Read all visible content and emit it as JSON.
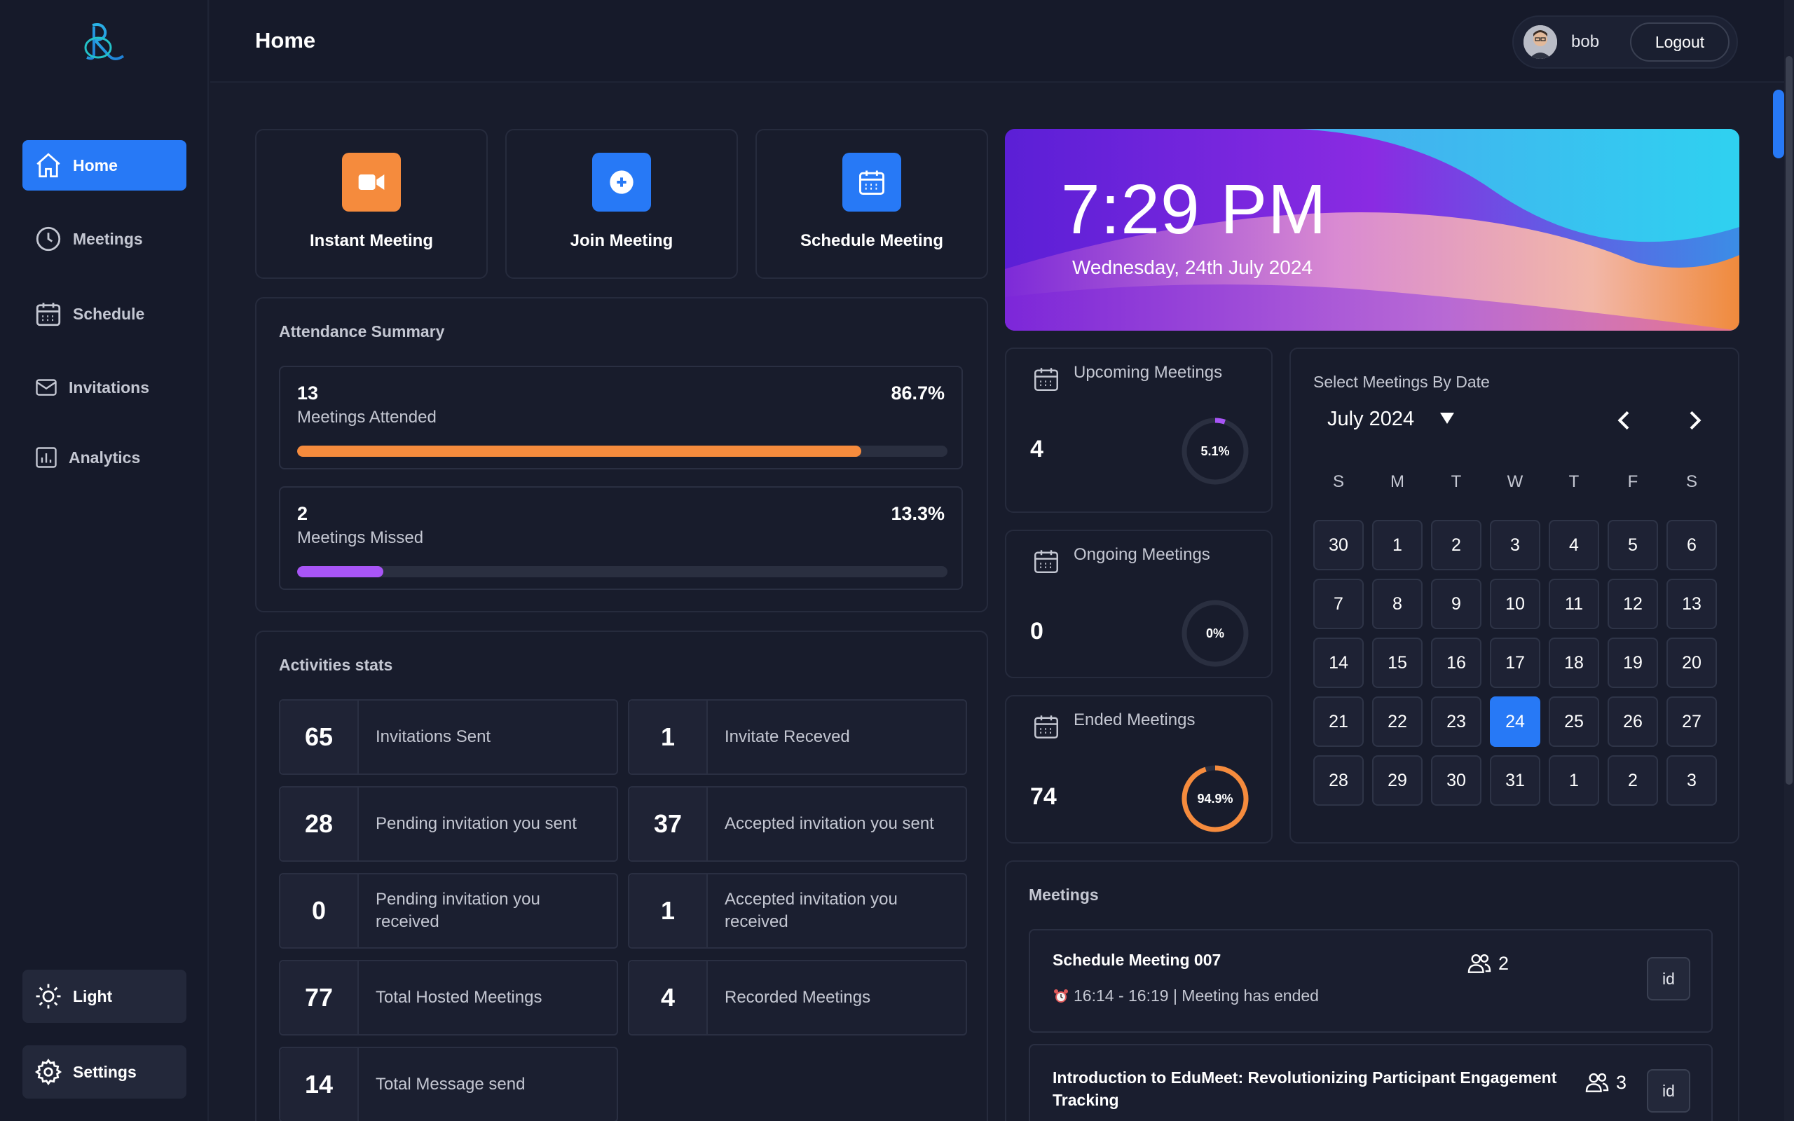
{
  "nav": {
    "items": [
      {
        "label": "Home",
        "icon": "home-icon",
        "active": true
      },
      {
        "label": "Meetings",
        "icon": "clock-icon"
      },
      {
        "label": "Schedule",
        "icon": "calendar-icon"
      },
      {
        "label": "Invitations",
        "icon": "mail-icon"
      },
      {
        "label": "Analytics",
        "icon": "chart-icon"
      }
    ],
    "theme_label": "Light",
    "settings_label": "Settings"
  },
  "header": {
    "title": "Home",
    "username": "bob",
    "logout_label": "Logout"
  },
  "quick_actions": [
    {
      "label": "Instant Meeting",
      "icon": "video-camera-icon",
      "color": "#f58b3d"
    },
    {
      "label": "Join Meeting",
      "icon": "plus-circle-icon",
      "color": "#2779f6"
    },
    {
      "label": "Schedule Meeting",
      "icon": "calendar-icon",
      "color": "#2779f6"
    }
  ],
  "attendance": {
    "title": "Attendance Summary",
    "attended": {
      "count": "13",
      "label": "Meetings Attended",
      "percent": "86.7%",
      "fraction": 0.867,
      "color": "#f58b3d"
    },
    "missed": {
      "count": "2",
      "label": "Meetings Missed",
      "percent": "13.3%",
      "fraction": 0.133,
      "color": "#a855f7"
    }
  },
  "activities": {
    "title": "Activities stats",
    "items": [
      {
        "value": "65",
        "label": "Invitations Sent"
      },
      {
        "value": "1",
        "label": "Invitate Receved"
      },
      {
        "value": "28",
        "label": "Pending invitation you sent"
      },
      {
        "value": "37",
        "label": "Accepted invitation you sent"
      },
      {
        "value": "0",
        "label": "Pending invitation you received"
      },
      {
        "value": "1",
        "label": "Accepted invitation you received"
      },
      {
        "value": "77",
        "label": "Total Hosted Meetings"
      },
      {
        "value": "4",
        "label": "Recorded Meetings"
      },
      {
        "value": "14",
        "label": "Total Message send"
      }
    ]
  },
  "hero": {
    "time": "7:29 PM",
    "date": "Wednesday, 24th July 2024"
  },
  "meeting_status": [
    {
      "title": "Upcoming Meetings",
      "count": "4",
      "percent_label": "5.1%",
      "fraction": 0.051,
      "color": "#a855f7"
    },
    {
      "title": "Ongoing Meetings",
      "count": "0",
      "percent_label": "0%",
      "fraction": 0,
      "color": "#2779f6"
    },
    {
      "title": "Ended Meetings",
      "count": "74",
      "percent_label": "94.9%",
      "fraction": 0.949,
      "color": "#f58b3d"
    }
  ],
  "calendar": {
    "title": "Select Meetings By Date",
    "month_label": "July 2024",
    "weekdays": [
      "S",
      "M",
      "T",
      "W",
      "T",
      "F",
      "S"
    ],
    "days": [
      "30",
      "1",
      "2",
      "3",
      "4",
      "5",
      "6",
      "7",
      "8",
      "9",
      "10",
      "11",
      "12",
      "13",
      "14",
      "15",
      "16",
      "17",
      "18",
      "19",
      "20",
      "21",
      "22",
      "23",
      "24",
      "25",
      "26",
      "27",
      "28",
      "29",
      "30",
      "31",
      "1",
      "2",
      "3"
    ],
    "selected_index": 24
  },
  "meetings": {
    "title": "Meetings",
    "items": [
      {
        "title": "Schedule Meeting 007",
        "time": "16:14 - 16:19 | Meeting has ended",
        "participants": "2",
        "id_label": "id"
      },
      {
        "title": "Introduction to EduMeet: Revolutionizing Participant Engagement Tracking",
        "participants": "3",
        "id_label": "id"
      }
    ]
  }
}
